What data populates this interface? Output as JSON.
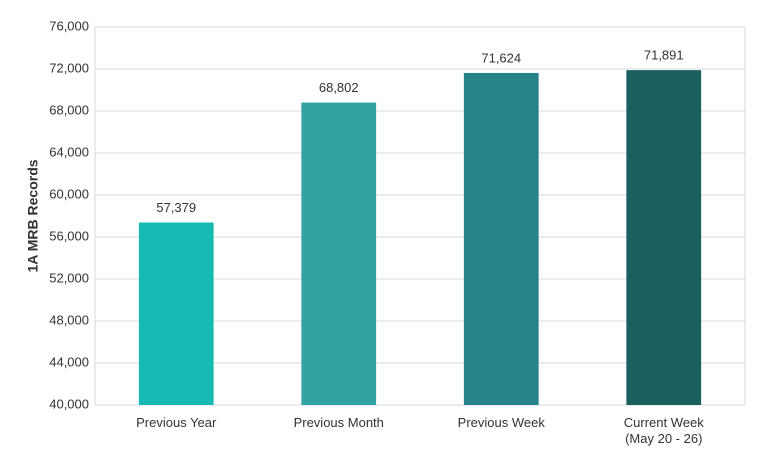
{
  "chart_data": {
    "type": "bar",
    "y_label": "1A MRB Records",
    "categories": [
      "Previous Year",
      "Previous Month",
      "Previous Week",
      "Current Week\n(May 20 - 26)"
    ],
    "values": [
      57379,
      68802,
      71624,
      71891
    ],
    "value_labels": [
      "57,379",
      "68,802",
      "71,624",
      "71,891"
    ],
    "colors": [
      "#17bab3",
      "#33a2a3",
      "#26838a",
      "#1b5e5e"
    ],
    "ylim": [
      40000,
      76000
    ],
    "yticks": [
      {
        "value": 40000,
        "label": "40,000"
      },
      {
        "value": 44000,
        "label": "44,000"
      },
      {
        "value": 48000,
        "label": "48,000"
      },
      {
        "value": 52000,
        "label": "52,000"
      },
      {
        "value": 56000,
        "label": "56,000"
      },
      {
        "value": 60000,
        "label": "60,000"
      },
      {
        "value": 64000,
        "label": "64,000"
      },
      {
        "value": 68000,
        "label": "68,000"
      },
      {
        "value": 72000,
        "label": "72,000"
      },
      {
        "value": 76000,
        "label": "76,000"
      }
    ],
    "grid": true
  }
}
